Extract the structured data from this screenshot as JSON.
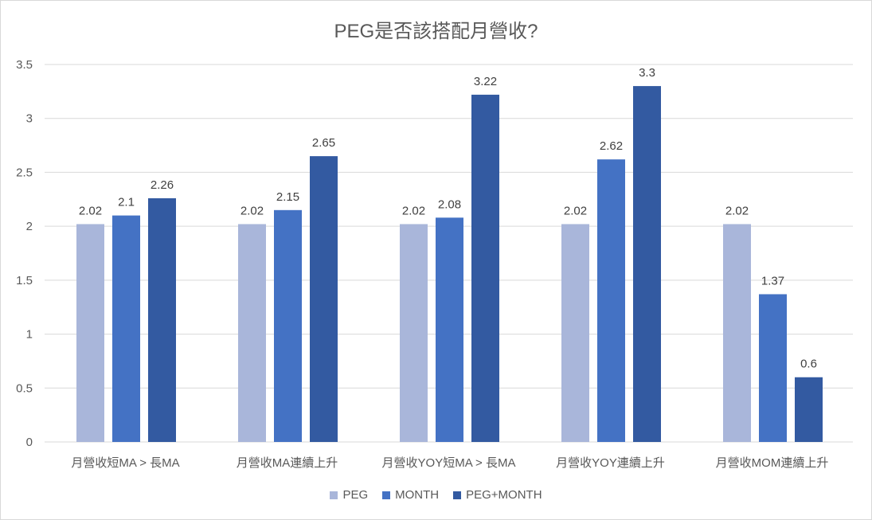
{
  "chart_data": {
    "type": "bar",
    "title": "PEG是否該搭配月營收?",
    "categories": [
      "月營收短MA > 長MA",
      "月營收MA連續上升",
      "月營收YOY短MA > 長MA",
      "月營收YOY連續上升",
      "月營收MOM連續上升"
    ],
    "series": [
      {
        "name": "PEG",
        "color": "#A9B6DA",
        "values": [
          2.02,
          2.02,
          2.02,
          2.02,
          2.02
        ]
      },
      {
        "name": "MONTH",
        "color": "#4472C4",
        "values": [
          2.1,
          2.15,
          2.08,
          2.62,
          1.37
        ]
      },
      {
        "name": "PEG+MONTH",
        "color": "#335AA1",
        "values": [
          2.26,
          2.65,
          3.22,
          3.3,
          0.6
        ]
      }
    ],
    "ylim": [
      0,
      3.5
    ],
    "yticks": [
      "0",
      "0.5",
      "1",
      "1.5",
      "2",
      "2.5",
      "3",
      "3.5"
    ],
    "grid": true,
    "legend": "bottom"
  }
}
